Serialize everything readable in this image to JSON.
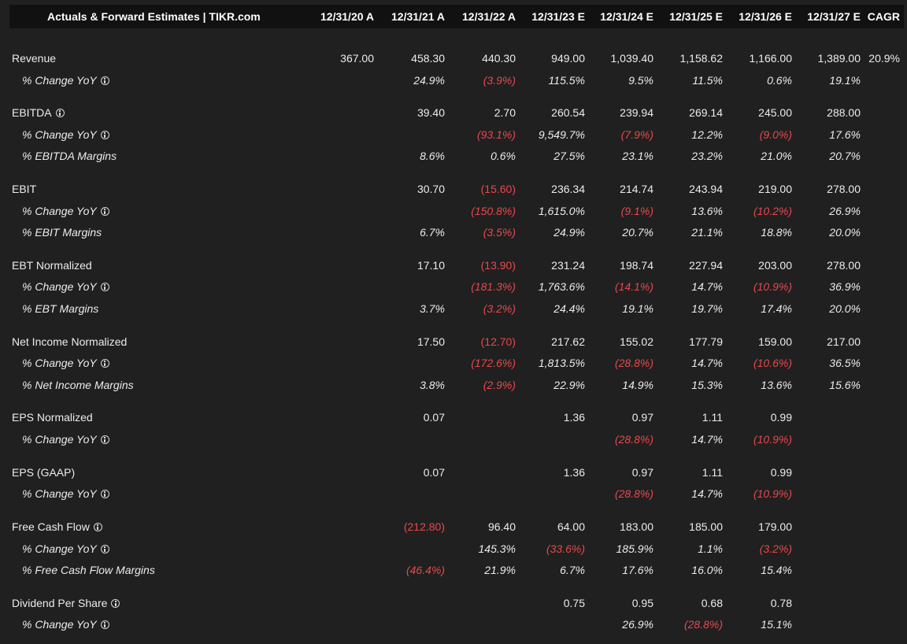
{
  "table": {
    "title": "Actuals & Forward Estimates | TIKR.com",
    "columns": [
      "12/31/20 A",
      "12/31/21 A",
      "12/31/22 A",
      "12/31/23 E",
      "12/31/24 E",
      "12/31/25 E",
      "12/31/26 E",
      "12/31/27 E",
      "CAGR"
    ],
    "rows": [
      {
        "label": "Revenue",
        "type": "main",
        "info": false,
        "values": [
          "367.00",
          "458.30",
          "440.30",
          "949.00",
          "1,039.40",
          "1,158.62",
          "1,166.00",
          "1,389.00",
          "20.9%"
        ]
      },
      {
        "label": "% Change YoY",
        "type": "sub",
        "info": true,
        "values": [
          "",
          "24.9%",
          "(3.9%)",
          "115.5%",
          "9.5%",
          "11.5%",
          "0.6%",
          "19.1%",
          ""
        ]
      },
      {
        "label": "EBITDA",
        "type": "main",
        "info": true,
        "values": [
          "",
          "39.40",
          "2.70",
          "260.54",
          "239.94",
          "269.14",
          "245.00",
          "288.00",
          ""
        ]
      },
      {
        "label": "% Change YoY",
        "type": "sub",
        "info": true,
        "values": [
          "",
          "",
          "(93.1%)",
          "9,549.7%",
          "(7.9%)",
          "12.2%",
          "(9.0%)",
          "17.6%",
          ""
        ]
      },
      {
        "label": "% EBITDA Margins",
        "type": "sub",
        "info": false,
        "values": [
          "",
          "8.6%",
          "0.6%",
          "27.5%",
          "23.1%",
          "23.2%",
          "21.0%",
          "20.7%",
          ""
        ]
      },
      {
        "label": "EBIT",
        "type": "main",
        "info": false,
        "values": [
          "",
          "30.70",
          "(15.60)",
          "236.34",
          "214.74",
          "243.94",
          "219.00",
          "278.00",
          ""
        ]
      },
      {
        "label": "% Change YoY",
        "type": "sub",
        "info": true,
        "values": [
          "",
          "",
          "(150.8%)",
          "1,615.0%",
          "(9.1%)",
          "13.6%",
          "(10.2%)",
          "26.9%",
          ""
        ]
      },
      {
        "label": "% EBIT Margins",
        "type": "sub",
        "info": false,
        "values": [
          "",
          "6.7%",
          "(3.5%)",
          "24.9%",
          "20.7%",
          "21.1%",
          "18.8%",
          "20.0%",
          ""
        ]
      },
      {
        "label": "EBT Normalized",
        "type": "main",
        "info": false,
        "values": [
          "",
          "17.10",
          "(13.90)",
          "231.24",
          "198.74",
          "227.94",
          "203.00",
          "278.00",
          ""
        ]
      },
      {
        "label": "% Change YoY",
        "type": "sub",
        "info": true,
        "values": [
          "",
          "",
          "(181.3%)",
          "1,763.6%",
          "(14.1%)",
          "14.7%",
          "(10.9%)",
          "36.9%",
          ""
        ]
      },
      {
        "label": "% EBT Margins",
        "type": "sub",
        "info": false,
        "values": [
          "",
          "3.7%",
          "(3.2%)",
          "24.4%",
          "19.1%",
          "19.7%",
          "17.4%",
          "20.0%",
          ""
        ]
      },
      {
        "label": "Net Income Normalized",
        "type": "main",
        "info": false,
        "values": [
          "",
          "17.50",
          "(12.70)",
          "217.62",
          "155.02",
          "177.79",
          "159.00",
          "217.00",
          ""
        ]
      },
      {
        "label": "% Change YoY",
        "type": "sub",
        "info": true,
        "values": [
          "",
          "",
          "(172.6%)",
          "1,813.5%",
          "(28.8%)",
          "14.7%",
          "(10.6%)",
          "36.5%",
          ""
        ]
      },
      {
        "label": "% Net Income Margins",
        "type": "sub",
        "info": false,
        "values": [
          "",
          "3.8%",
          "(2.9%)",
          "22.9%",
          "14.9%",
          "15.3%",
          "13.6%",
          "15.6%",
          ""
        ]
      },
      {
        "label": "EPS Normalized",
        "type": "main",
        "info": false,
        "values": [
          "",
          "0.07",
          "",
          "1.36",
          "0.97",
          "1.11",
          "0.99",
          "",
          ""
        ]
      },
      {
        "label": "% Change YoY",
        "type": "sub",
        "info": true,
        "values": [
          "",
          "",
          "",
          "",
          "(28.8%)",
          "14.7%",
          "(10.9%)",
          "",
          ""
        ]
      },
      {
        "label": "EPS (GAAP)",
        "type": "main",
        "info": false,
        "values": [
          "",
          "0.07",
          "",
          "1.36",
          "0.97",
          "1.11",
          "0.99",
          "",
          ""
        ]
      },
      {
        "label": "% Change YoY",
        "type": "sub",
        "info": true,
        "values": [
          "",
          "",
          "",
          "",
          "(28.8%)",
          "14.7%",
          "(10.9%)",
          "",
          ""
        ]
      },
      {
        "label": "Free Cash Flow",
        "type": "main",
        "info": true,
        "values": [
          "",
          "(212.80)",
          "96.40",
          "64.00",
          "183.00",
          "185.00",
          "179.00",
          "",
          ""
        ]
      },
      {
        "label": "% Change YoY",
        "type": "sub",
        "info": true,
        "values": [
          "",
          "",
          "145.3%",
          "(33.6%)",
          "185.9%",
          "1.1%",
          "(3.2%)",
          "",
          ""
        ]
      },
      {
        "label": "% Free Cash Flow Margins",
        "type": "sub",
        "info": false,
        "values": [
          "",
          "(46.4%)",
          "21.9%",
          "6.7%",
          "17.6%",
          "16.0%",
          "15.4%",
          "",
          ""
        ]
      },
      {
        "label": "Dividend Per Share",
        "type": "main",
        "info": true,
        "values": [
          "",
          "",
          "",
          "0.75",
          "0.95",
          "0.68",
          "0.78",
          "",
          ""
        ]
      },
      {
        "label": "% Change YoY",
        "type": "sub",
        "info": true,
        "values": [
          "",
          "",
          "",
          "",
          "26.9%",
          "(28.8%)",
          "15.1%",
          "",
          ""
        ]
      }
    ]
  },
  "colors": {
    "background": "#202020",
    "header_bg": "#111111",
    "text": "#ececec",
    "negative": "#e8484d"
  },
  "icons": {
    "info": "info-circle-icon"
  }
}
